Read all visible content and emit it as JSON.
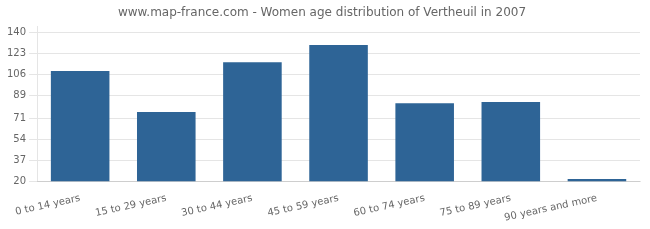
{
  "chart_data": {
    "type": "bar",
    "title": "www.map-france.com - Women age distribution of Vertheuil in 2007",
    "categories": [
      "0 to 14 years",
      "15 to 29 years",
      "30 to 44 years",
      "45 to 59 years",
      "60 to 74 years",
      "75 to 89 years",
      "90 years and more"
    ],
    "values": [
      109,
      76,
      116,
      130,
      83,
      84,
      22
    ],
    "color": "#2e6496",
    "ylim": [
      20,
      145
    ],
    "yticks": [
      20,
      37,
      54,
      71,
      89,
      106,
      123,
      140
    ],
    "grid": true
  }
}
